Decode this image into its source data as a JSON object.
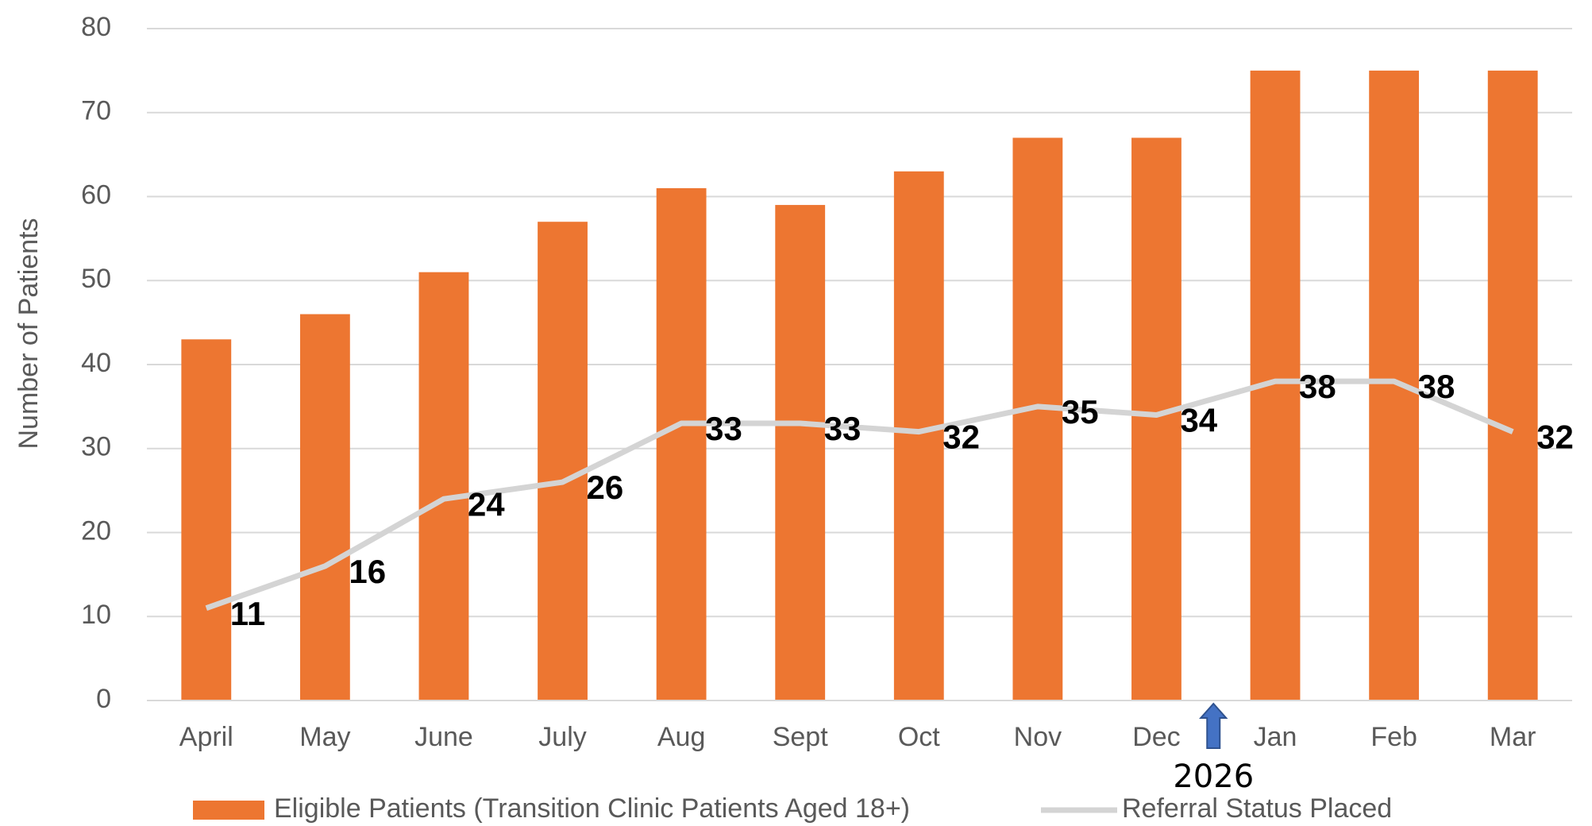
{
  "chart_data": {
    "type": "bar",
    "y_label": "Number of Patients",
    "categories": [
      "April",
      "May",
      "June",
      "July",
      "Aug",
      "Sept",
      "Oct",
      "Nov",
      "Dec",
      "Jan",
      "Feb",
      "Mar"
    ],
    "series": [
      {
        "name": "Eligible Patients (Transition Clinic Patients Aged 18+)",
        "type": "bar",
        "color": "#ed7631",
        "values": [
          43,
          46,
          51,
          57,
          61,
          59,
          63,
          67,
          67,
          75,
          75,
          75
        ]
      },
      {
        "name": "Referral Status Placed",
        "type": "line",
        "color": "#d4d4d4",
        "data_labels": true,
        "values": [
          11,
          16,
          24,
          26,
          33,
          33,
          32,
          35,
          34,
          38,
          38,
          32
        ]
      }
    ],
    "annotation": "2026",
    "annotation_color": "#4472c4",
    "ylim": [
      0,
      80
    ],
    "yticks": [
      0,
      10,
      20,
      30,
      40,
      50,
      60,
      70,
      80
    ],
    "grid": true,
    "legend": "bottom"
  }
}
